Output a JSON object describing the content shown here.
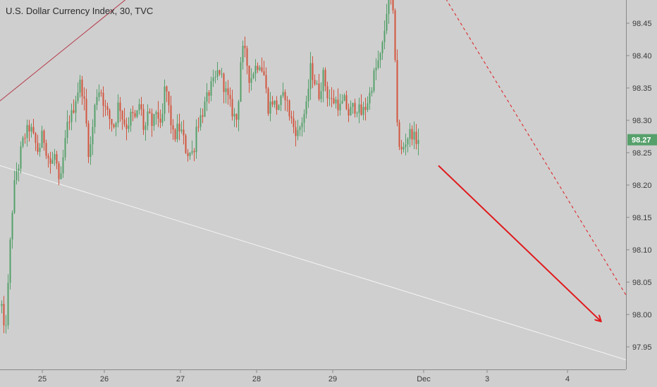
{
  "chart_data": {
    "type": "candlestick",
    "title": "U.S. Dollar Currency Index, 30, TVC",
    "ylim": [
      97.915,
      98.505
    ],
    "yticks": [
      97.95,
      98.0,
      98.05,
      98.1,
      98.15,
      98.2,
      98.25,
      98.3,
      98.35,
      98.4,
      98.45
    ],
    "ytick_labels": [
      "97.95",
      "98.00",
      "98.05",
      "98.10",
      "98.15",
      "98.20",
      "98.25",
      "98.30",
      "98.35",
      "98.40",
      "98.45"
    ],
    "x_tick_labels": [
      "25",
      "26",
      "27",
      "28",
      "29",
      "Dec",
      "3",
      "4"
    ],
    "current_price": 98.27,
    "current_price_label": "98.27",
    "grid": false,
    "colors": {
      "background": "#cfcfcf",
      "up": "#56a06b",
      "down": "#d2543d",
      "price_tag": "#56a06b",
      "arrow": "#e0191c",
      "upper_trendline": "#b53a4a",
      "lower_trendline": "#f4f4f4",
      "projection_dashed": "#e0191c"
    },
    "price_anchors": [
      [
        0,
        98.04
      ],
      [
        6,
        97.96
      ],
      [
        10,
        98.02
      ],
      [
        14,
        98.11
      ],
      [
        18,
        98.18
      ],
      [
        22,
        98.22
      ],
      [
        26,
        98.23
      ],
      [
        30,
        98.26
      ],
      [
        36,
        98.28
      ],
      [
        42,
        98.29
      ],
      [
        48,
        98.27
      ],
      [
        54,
        98.25
      ],
      [
        60,
        98.28
      ],
      [
        66,
        98.25
      ],
      [
        72,
        98.23
      ],
      [
        78,
        98.25
      ],
      [
        84,
        98.19
      ],
      [
        90,
        98.25
      ],
      [
        96,
        98.3
      ],
      [
        102,
        98.31
      ],
      [
        108,
        98.34
      ],
      [
        114,
        98.36
      ],
      [
        120,
        98.32
      ],
      [
        126,
        98.24
      ],
      [
        130,
        98.28
      ],
      [
        136,
        98.34
      ],
      [
        142,
        98.35
      ],
      [
        148,
        98.32
      ],
      [
        156,
        98.3
      ],
      [
        162,
        98.29
      ],
      [
        168,
        98.33
      ],
      [
        174,
        98.3
      ],
      [
        180,
        98.29
      ],
      [
        186,
        98.31
      ],
      [
        192,
        98.3
      ],
      [
        198,
        98.33
      ],
      [
        204,
        98.28
      ],
      [
        210,
        98.31
      ],
      [
        216,
        98.29
      ],
      [
        222,
        98.32
      ],
      [
        228,
        98.28
      ],
      [
        234,
        98.36
      ],
      [
        240,
        98.31
      ],
      [
        246,
        98.27
      ],
      [
        252,
        98.29
      ],
      [
        258,
        98.28
      ],
      [
        264,
        98.25
      ],
      [
        270,
        98.25
      ],
      [
        274,
        98.25
      ],
      [
        278,
        98.29
      ],
      [
        286,
        98.31
      ],
      [
        292,
        98.33
      ],
      [
        298,
        98.35
      ],
      [
        304,
        98.36
      ],
      [
        310,
        98.38
      ],
      [
        318,
        98.35
      ],
      [
        324,
        98.33
      ],
      [
        330,
        98.31
      ],
      [
        336,
        98.3
      ],
      [
        342,
        98.41
      ],
      [
        348,
        98.4
      ],
      [
        354,
        98.36
      ],
      [
        360,
        98.38
      ],
      [
        368,
        98.39
      ],
      [
        374,
        98.37
      ],
      [
        380,
        98.32
      ],
      [
        386,
        98.33
      ],
      [
        392,
        98.32
      ],
      [
        398,
        98.33
      ],
      [
        404,
        98.34
      ],
      [
        410,
        98.31
      ],
      [
        416,
        98.29
      ],
      [
        422,
        98.28
      ],
      [
        428,
        98.3
      ],
      [
        434,
        98.32
      ],
      [
        440,
        98.38
      ],
      [
        446,
        98.36
      ],
      [
        452,
        98.34
      ],
      [
        458,
        98.37
      ],
      [
        464,
        98.34
      ],
      [
        470,
        98.33
      ],
      [
        476,
        98.33
      ],
      [
        482,
        98.32
      ],
      [
        488,
        98.33
      ],
      [
        494,
        98.31
      ],
      [
        500,
        98.32
      ],
      [
        506,
        98.32
      ],
      [
        512,
        98.31
      ],
      [
        518,
        98.32
      ],
      [
        524,
        98.34
      ],
      [
        530,
        98.37
      ],
      [
        536,
        98.39
      ],
      [
        540,
        98.4
      ],
      [
        544,
        98.43
      ],
      [
        548,
        98.47
      ],
      [
        552,
        98.5
      ],
      [
        556,
        98.48
      ],
      [
        560,
        98.4
      ],
      [
        562,
        98.34
      ],
      [
        564,
        98.26
      ],
      [
        568,
        98.25
      ],
      [
        572,
        98.26
      ],
      [
        576,
        98.27
      ],
      [
        580,
        98.28
      ],
      [
        584,
        98.28
      ],
      [
        588,
        98.27
      ],
      [
        592,
        98.27
      ]
    ],
    "annotations": [
      {
        "type": "trendline",
        "name": "upper-trendline",
        "from": [
          0,
          98.33
        ],
        "to": [
          205,
          98.51
        ]
      },
      {
        "type": "trendline",
        "name": "lower-trendline",
        "from": [
          0,
          98.23
        ],
        "to": [
          888,
          97.93
        ]
      },
      {
        "type": "dashed-line",
        "name": "projection-dashed-line",
        "from": [
          620,
          98.51
        ],
        "to": [
          888,
          98.03
        ]
      },
      {
        "type": "arrow",
        "name": "down-arrow",
        "from": [
          622,
          98.23
        ],
        "to": [
          852,
          97.99
        ]
      }
    ]
  }
}
